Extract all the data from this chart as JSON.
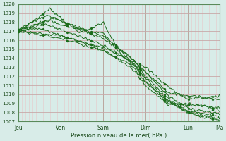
{
  "xlabel": "Pression niveau de la mer( hPa )",
  "ylim": [
    1007,
    1020
  ],
  "yticks": [
    1007,
    1008,
    1009,
    1010,
    1011,
    1012,
    1013,
    1014,
    1015,
    1016,
    1017,
    1018,
    1019,
    1020
  ],
  "xtick_labels": [
    "Jeu",
    "Ven",
    "Sam",
    "Dim",
    "Lun",
    "Ma"
  ],
  "xtick_positions": [
    0,
    24,
    48,
    72,
    96,
    114
  ],
  "bg_color": "#d8ece8",
  "grid_color_minor": "#e8c8c8",
  "grid_color_major": "#c8a8a8",
  "line_color": "#1a6b1a",
  "xlim": [
    0,
    114
  ]
}
